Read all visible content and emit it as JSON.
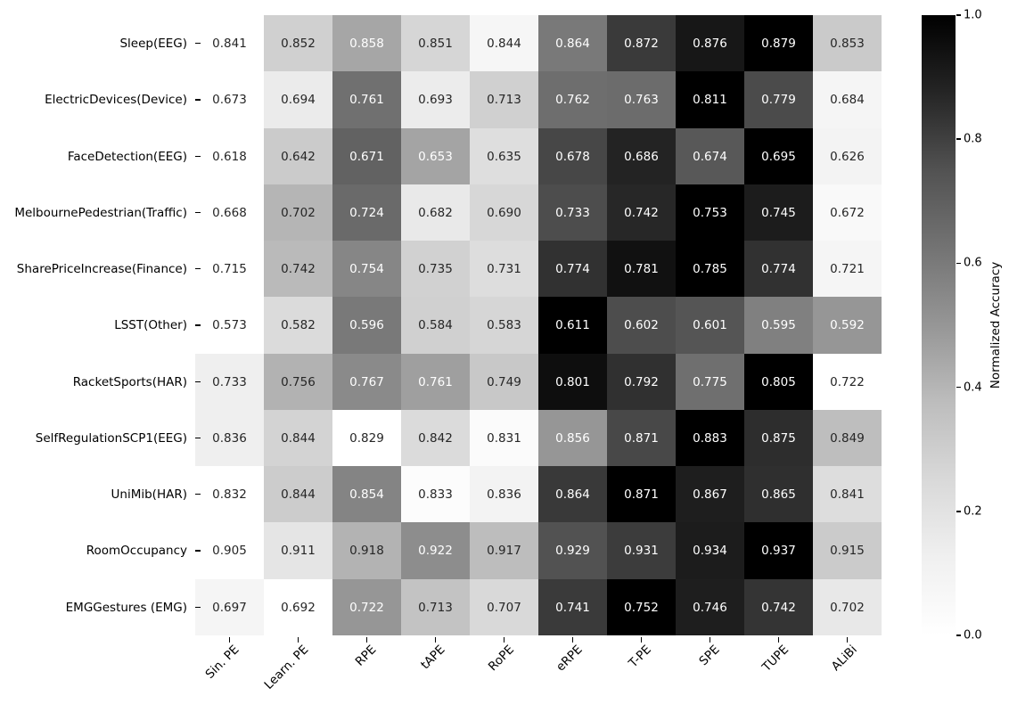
{
  "chart_data": {
    "type": "heatmap",
    "title": "",
    "rows": [
      "Sleep(EEG)",
      "ElectricDevices(Device)",
      "FaceDetection(EEG)",
      "MelbournePedestrian(Traffic)",
      "SharePriceIncrease(Finance)",
      "LSST(Other)",
      "RacketSports(HAR)",
      "SelfRegulationSCP1(EEG)",
      "UniMib(HAR)",
      "RoomOccupancy",
      "EMGGestures (EMG)"
    ],
    "columns": [
      "Sin. PE",
      "Learn. PE",
      "RPE",
      "tAPE",
      "RoPE",
      "eRPE",
      "T-PE",
      "SPE",
      "TUPE",
      "ALiBi"
    ],
    "values": [
      [
        0.841,
        0.852,
        0.858,
        0.851,
        0.844,
        0.864,
        0.872,
        0.876,
        0.879,
        0.853
      ],
      [
        0.673,
        0.694,
        0.761,
        0.693,
        0.713,
        0.762,
        0.763,
        0.811,
        0.779,
        0.684
      ],
      [
        0.618,
        0.642,
        0.671,
        0.653,
        0.635,
        0.678,
        0.686,
        0.674,
        0.695,
        0.626
      ],
      [
        0.668,
        0.702,
        0.724,
        0.682,
        0.69,
        0.733,
        0.742,
        0.753,
        0.745,
        0.672
      ],
      [
        0.715,
        0.742,
        0.754,
        0.735,
        0.731,
        0.774,
        0.781,
        0.785,
        0.774,
        0.721
      ],
      [
        0.573,
        0.582,
        0.596,
        0.584,
        0.583,
        0.611,
        0.602,
        0.601,
        0.595,
        0.592
      ],
      [
        0.733,
        0.756,
        0.767,
        0.761,
        0.749,
        0.801,
        0.792,
        0.775,
        0.805,
        0.722
      ],
      [
        0.836,
        0.844,
        0.829,
        0.842,
        0.831,
        0.856,
        0.871,
        0.883,
        0.875,
        0.849
      ],
      [
        0.832,
        0.844,
        0.854,
        0.833,
        0.836,
        0.864,
        0.871,
        0.867,
        0.865,
        0.841
      ],
      [
        0.905,
        0.911,
        0.918,
        0.922,
        0.917,
        0.929,
        0.931,
        0.934,
        0.937,
        0.915
      ],
      [
        0.697,
        0.692,
        0.722,
        0.713,
        0.707,
        0.741,
        0.752,
        0.746,
        0.742,
        0.702
      ]
    ],
    "value_decimals": 3,
    "normalization": "per-row min-max",
    "colormap": {
      "name": "Greys",
      "stops": [
        "#ffffff",
        "#f0f0f0",
        "#d9d9d9",
        "#bdbdbd",
        "#969696",
        "#737373",
        "#525252",
        "#252525",
        "#000000"
      ]
    },
    "annotation_colors": {
      "dark": "#262626",
      "light": "#ffffff"
    },
    "colorbar": {
      "label": "Normalized Accuracy",
      "tick_values": [
        0.0,
        0.2,
        0.4,
        0.6,
        0.8,
        1.0
      ],
      "tick_labels": [
        "0.0",
        "0.2",
        "0.4",
        "0.6",
        "0.8",
        "1.0"
      ],
      "min": 0.0,
      "max": 1.0
    },
    "legend_position": "right-colorbar",
    "grid": false
  }
}
